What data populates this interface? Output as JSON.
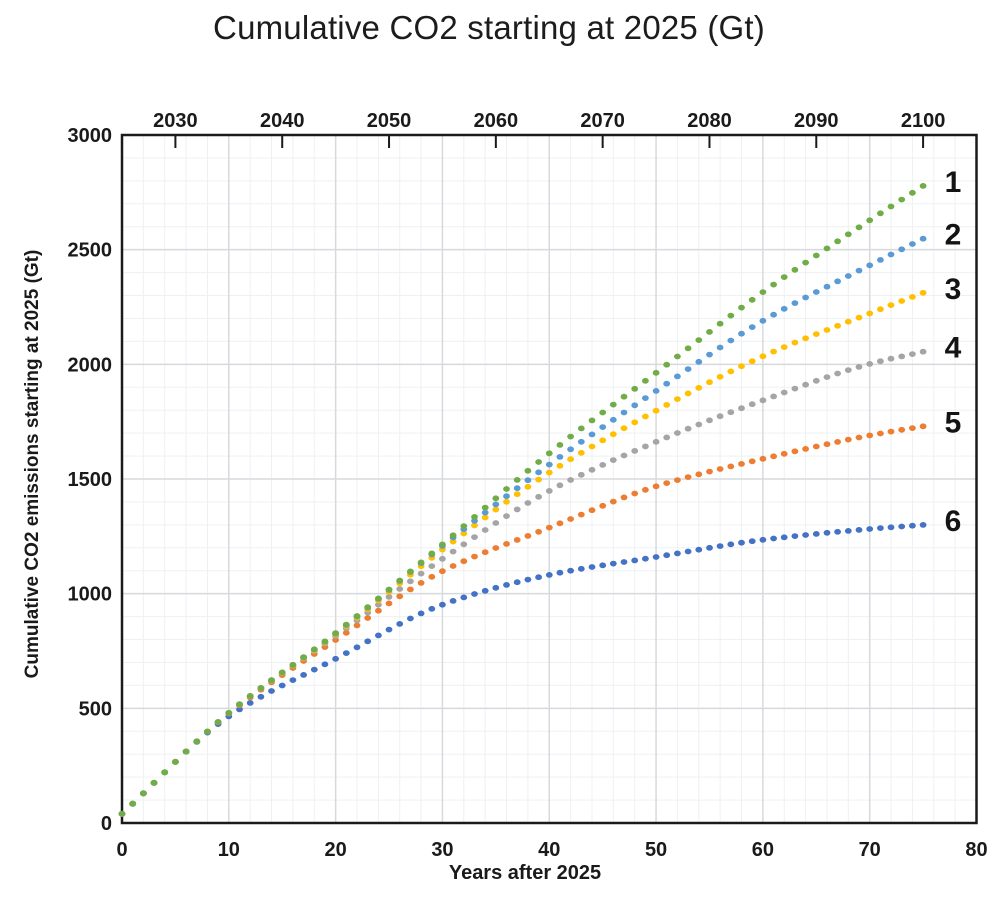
{
  "title": "Cumulative CO2 starting at 2025 (Gt)",
  "chart_data": {
    "type": "scatter",
    "title": "Cumulative CO2 starting at 2025 (Gt)",
    "xlabel": "Years after 2025",
    "ylabel": "Cumulative CO2 emissions starting at 2025 (Gt)",
    "xlim": [
      0,
      80
    ],
    "ylim": [
      0,
      3000
    ],
    "grid": {
      "shown": true,
      "minor_x_step_years": 2,
      "major_x_step_years": 10,
      "minor_y_step_gt": 100,
      "major_y_step_gt": 500,
      "minor_color": "#eef0f3",
      "major_color": "#d6d9dd"
    },
    "x_axis_bottom": {
      "label": "Years after 2025",
      "ticks": [
        0,
        10,
        20,
        30,
        40,
        50,
        60,
        70,
        80
      ]
    },
    "x_axis_top": {
      "tick_labels": [
        "2030",
        "2040",
        "2050",
        "2060",
        "2070",
        "2080",
        "2090",
        "2100"
      ],
      "tick_years_after_2025": [
        5,
        15,
        25,
        35,
        45,
        55,
        65,
        75
      ]
    },
    "y_axis": {
      "label": "Cumulative CO2 emissions starting at 2025 (Gt)",
      "ticks": [
        0,
        500,
        1000,
        1500,
        2000,
        2500,
        3000
      ]
    },
    "marker": "dot",
    "point_interval_years": 1,
    "last_point_year": 75,
    "sample_years": [
      0,
      10,
      20,
      30,
      40,
      50,
      60,
      70,
      75
    ],
    "series": [
      {
        "name": "1",
        "color": "#70AD47",
        "cumulative_gt": [
          40,
          480,
          828,
          1215,
          1612,
          1963,
          2315,
          2628,
          2778
        ]
      },
      {
        "name": "2",
        "color": "#5B9BD5",
        "cumulative_gt": [
          40,
          480,
          826,
          1208,
          1563,
          1884,
          2190,
          2432,
          2548
        ]
      },
      {
        "name": "3",
        "color": "#FFC000",
        "cumulative_gt": [
          40,
          480,
          822,
          1192,
          1528,
          1798,
          2035,
          2222,
          2312
        ]
      },
      {
        "name": "4",
        "color": "#A5A5A5",
        "cumulative_gt": [
          40,
          480,
          815,
          1152,
          1448,
          1662,
          1843,
          2002,
          2055
        ]
      },
      {
        "name": "5",
        "color": "#ED7D31",
        "cumulative_gt": [
          40,
          477,
          798,
          1098,
          1288,
          1468,
          1588,
          1690,
          1730
        ]
      },
      {
        "name": "6",
        "color": "#4472C4",
        "cumulative_gt": [
          40,
          465,
          716,
          952,
          1082,
          1160,
          1235,
          1282,
          1300
        ]
      }
    ]
  }
}
